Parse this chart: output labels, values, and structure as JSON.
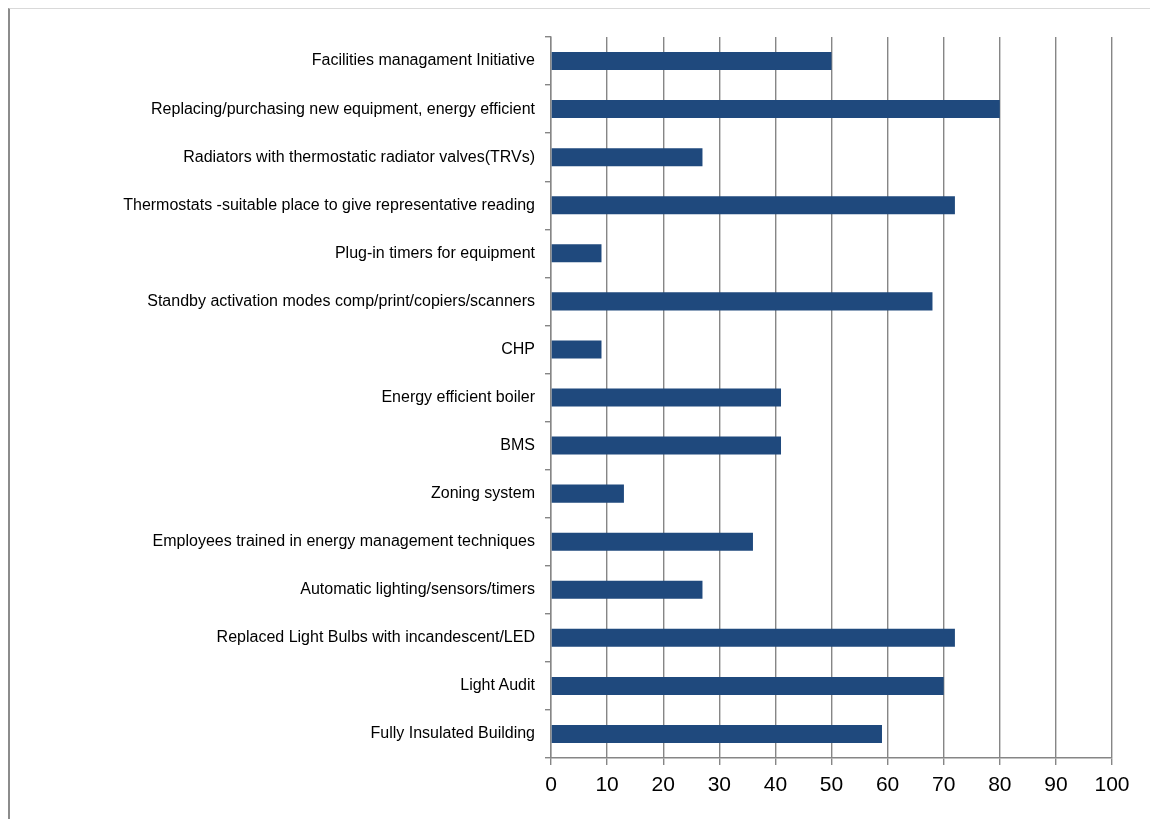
{
  "chart_data": {
    "type": "bar",
    "orientation": "horizontal",
    "categories": [
      "Facilities managament Initiative",
      "Replacing/purchasing new equipment, energy efficient",
      "Radiators with thermostatic radiator valves(TRVs)",
      "Thermostats -suitable place to give representative reading",
      "Plug-in timers for equipment",
      "Standby activation modes comp/print/copiers/scanners",
      "CHP",
      "Energy efficient boiler",
      "BMS",
      "Zoning system",
      "Employees trained in energy management techniques",
      "Automatic lighting/sensors/timers",
      "Replaced Light Bulbs with incandescent/LED",
      "Light Audit",
      "Fully Insulated Building"
    ],
    "values": [
      50,
      80,
      27,
      72,
      9,
      68,
      9,
      41,
      41,
      13,
      36,
      27,
      72,
      70,
      59
    ],
    "color": "#1f497d",
    "xlim": [
      0,
      100
    ],
    "xticks": [
      0,
      10,
      20,
      30,
      40,
      50,
      60,
      70,
      80,
      90,
      100
    ],
    "grid": "x"
  }
}
